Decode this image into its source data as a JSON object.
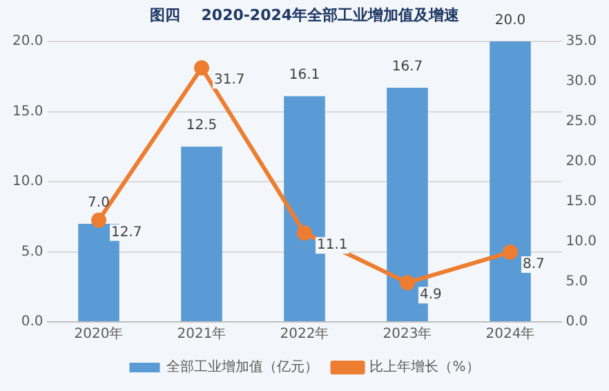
{
  "chart_data": {
    "type": "bar",
    "title": "图四    2020-2024年全部工业增加值及增速",
    "categories": [
      "2020年",
      "2021年",
      "2022年",
      "2023年",
      "2024年"
    ],
    "series": [
      {
        "name": "全部工业增加值（亿元）",
        "color": "#5b9bd5",
        "values": [
          7.0,
          12.5,
          16.1,
          16.7,
          20.0
        ],
        "value_labels": [
          "7.0",
          "12.5",
          "16.1",
          "16.7",
          "20.0"
        ]
      },
      {
        "name": "比上年增长（%）",
        "type": "line",
        "axis": "y2",
        "color": "#ed7d31",
        "values": [
          12.7,
          31.7,
          11.1,
          4.9,
          8.7
        ],
        "value_labels": [
          "12.7",
          "31.7",
          "11.1",
          "4.9",
          "8.7"
        ]
      }
    ],
    "ylim": [
      0,
      20
    ],
    "yticks": [
      {
        "value": 0,
        "label": "0.0"
      },
      {
        "value": 5,
        "label": "5.0"
      },
      {
        "value": 10,
        "label": "10.0"
      },
      {
        "value": 15,
        "label": "15.0"
      },
      {
        "value": 20,
        "label": "20.0"
      }
    ],
    "y2lim": [
      0,
      35
    ],
    "y2ticks": [
      {
        "value": 0,
        "label": "0.0"
      },
      {
        "value": 5,
        "label": "5.0"
      },
      {
        "value": 10,
        "label": "10.0"
      },
      {
        "value": 15,
        "label": "15.0"
      },
      {
        "value": 20,
        "label": "20.0"
      },
      {
        "value": 25,
        "label": "25.0"
      },
      {
        "value": 30,
        "label": "30.0"
      },
      {
        "value": 35,
        "label": "35.0"
      }
    ],
    "grid": "y",
    "legend": "bottom",
    "marker": "circle",
    "line_style": "solid"
  }
}
